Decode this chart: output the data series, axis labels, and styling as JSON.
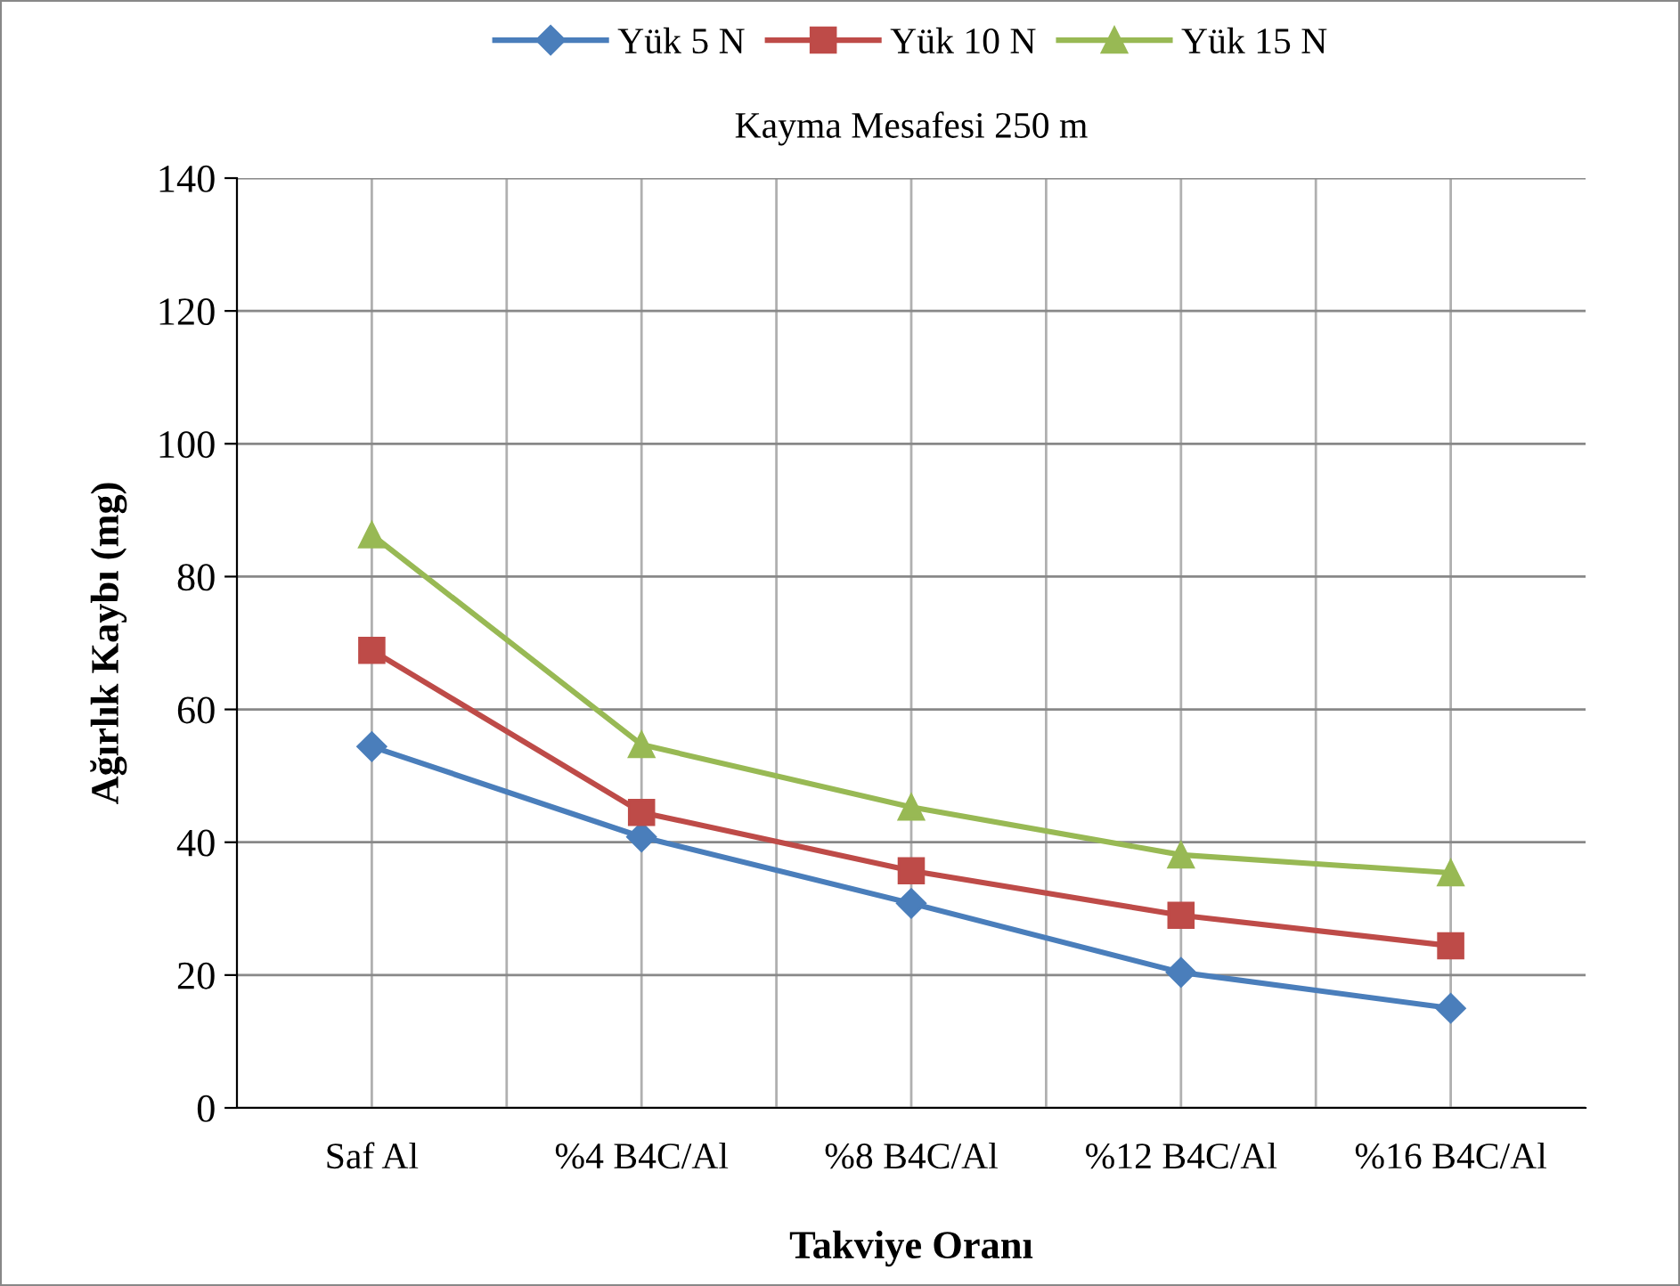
{
  "chart_data": {
    "type": "line",
    "title": "Kayma Mesafesi 250 m",
    "xlabel": "Takviye Oranı",
    "ylabel": "Ağırlık Kaybı (mg)",
    "categories": [
      "Saf Al",
      "%4 B4C/Al",
      "%8 B4C/Al",
      "%12 B4C/Al",
      "%16 B4C/Al"
    ],
    "series": [
      {
        "name": "Yük 5 N",
        "color": "#4a7ebb",
        "marker": "diamond",
        "values": [
          54.4,
          40.8,
          30.8,
          20.4,
          15.0
        ]
      },
      {
        "name": "Yük 10 N",
        "color": "#be4b48",
        "marker": "square",
        "values": [
          68.9,
          44.5,
          35.7,
          29.0,
          24.4
        ]
      },
      {
        "name": "Yük 15 N",
        "color": "#98b954",
        "marker": "triangle",
        "values": [
          86.3,
          54.7,
          45.3,
          38.1,
          35.4
        ]
      }
    ],
    "ylim": [
      0,
      140
    ],
    "yticks": [
      0,
      20,
      40,
      60,
      80,
      100,
      120,
      140
    ],
    "grid": true,
    "legend": "top",
    "line_style": "solid"
  }
}
